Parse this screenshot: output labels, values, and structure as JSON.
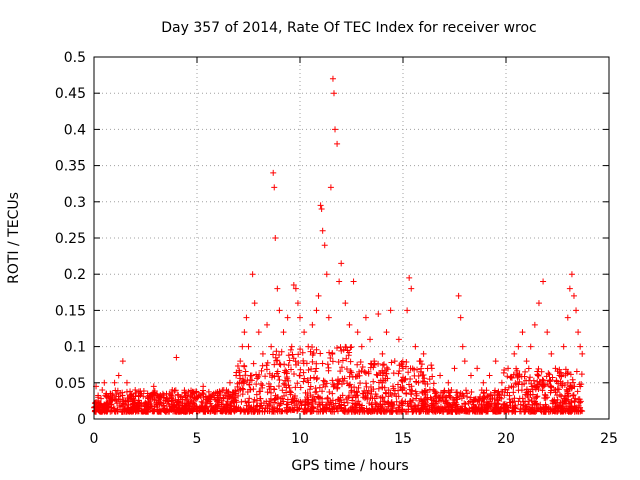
{
  "chart_data": {
    "type": "scatter",
    "title": "Day 357 of 2014, Rate Of TEC Index for receiver wroc",
    "xlabel": "GPS time / hours",
    "ylabel": "ROTI / TECUs",
    "xlim": [
      0,
      25
    ],
    "ylim": [
      0,
      0.5
    ],
    "xticks": [
      "0",
      "5",
      "10",
      "15",
      "20",
      "25"
    ],
    "yticks": [
      "0",
      "0.05",
      "0.1",
      "0.15",
      "0.2",
      "0.25",
      "0.3",
      "0.35",
      "0.4",
      "0.45",
      "0.5"
    ],
    "grid": true,
    "marker": "+",
    "color": "#ff0000",
    "x": [
      0.1,
      0.2,
      0.3,
      0.4,
      0.5,
      0.6,
      0.8,
      1.0,
      1.2,
      1.4,
      1.6,
      1.8,
      2.0,
      2.3,
      2.6,
      2.9,
      3.2,
      3.5,
      3.8,
      4.0,
      4.2,
      4.5,
      4.8,
      5.0,
      5.3,
      5.6,
      6.0,
      6.3,
      6.6,
      6.9,
      7.1,
      7.2,
      7.3,
      7.4,
      7.5,
      7.6,
      7.7,
      7.8,
      8.0,
      8.2,
      8.4,
      8.6,
      8.7,
      8.75,
      8.8,
      8.9,
      9.0,
      9.2,
      9.4,
      9.6,
      9.7,
      9.8,
      9.9,
      10.0,
      10.2,
      10.4,
      10.6,
      10.8,
      10.9,
      11.0,
      11.05,
      11.1,
      11.2,
      11.3,
      11.4,
      11.5,
      11.6,
      11.65,
      11.7,
      11.8,
      11.9,
      12.0,
      12.2,
      12.4,
      12.6,
      12.8,
      13.0,
      13.2,
      13.4,
      13.6,
      13.8,
      14.0,
      14.2,
      14.4,
      14.6,
      14.8,
      15.0,
      15.2,
      15.3,
      15.4,
      15.6,
      15.8,
      16.0,
      16.4,
      16.8,
      17.2,
      17.5,
      17.7,
      17.8,
      17.9,
      18.0,
      18.3,
      18.6,
      18.9,
      19.2,
      19.5,
      19.8,
      20.1,
      20.4,
      20.6,
      20.8,
      21.0,
      21.2,
      21.4,
      21.6,
      21.8,
      22.0,
      22.2,
      22.4,
      22.6,
      22.8,
      23.0,
      23.1,
      23.2,
      23.3,
      23.4,
      23.5,
      23.6,
      23.7
    ],
    "y": [
      0.045,
      0.03,
      0.02,
      0.04,
      0.05,
      0.035,
      0.025,
      0.05,
      0.06,
      0.08,
      0.05,
      0.03,
      0.04,
      0.035,
      0.03,
      0.045,
      0.03,
      0.025,
      0.04,
      0.085,
      0.03,
      0.025,
      0.035,
      0.03,
      0.045,
      0.03,
      0.035,
      0.04,
      0.05,
      0.06,
      0.08,
      0.1,
      0.12,
      0.14,
      0.1,
      0.06,
      0.2,
      0.16,
      0.12,
      0.09,
      0.13,
      0.1,
      0.34,
      0.32,
      0.25,
      0.18,
      0.15,
      0.12,
      0.14,
      0.1,
      0.185,
      0.18,
      0.16,
      0.14,
      0.12,
      0.1,
      0.13,
      0.15,
      0.17,
      0.295,
      0.29,
      0.26,
      0.24,
      0.2,
      0.14,
      0.32,
      0.47,
      0.45,
      0.4,
      0.38,
      0.19,
      0.215,
      0.16,
      0.13,
      0.19,
      0.12,
      0.1,
      0.14,
      0.11,
      0.08,
      0.145,
      0.09,
      0.12,
      0.15,
      0.08,
      0.11,
      0.07,
      0.15,
      0.195,
      0.18,
      0.1,
      0.08,
      0.09,
      0.07,
      0.06,
      0.05,
      0.07,
      0.17,
      0.14,
      0.1,
      0.08,
      0.06,
      0.07,
      0.05,
      0.06,
      0.08,
      0.05,
      0.07,
      0.09,
      0.1,
      0.12,
      0.08,
      0.1,
      0.13,
      0.16,
      0.19,
      0.12,
      0.09,
      0.07,
      0.06,
      0.1,
      0.14,
      0.18,
      0.2,
      0.17,
      0.15,
      0.12,
      0.1,
      0.09
    ]
  }
}
